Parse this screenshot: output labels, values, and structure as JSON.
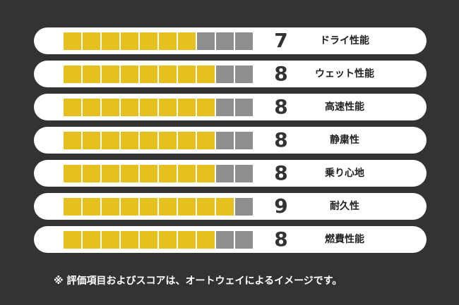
{
  "chart_data": {
    "type": "bar",
    "max": 10,
    "categories": [
      "ドライ性能",
      "ウェット性能",
      "高速性能",
      "静粛性",
      "乗り心地",
      "耐久性",
      "燃費性能"
    ],
    "values": [
      7,
      8,
      8,
      8,
      8,
      9,
      8
    ],
    "colors": {
      "filled": "#e5c01f",
      "empty": "#8e8e8e"
    }
  },
  "note": "※ 評価項目およびスコアは、オートウェイによるイメージです。"
}
